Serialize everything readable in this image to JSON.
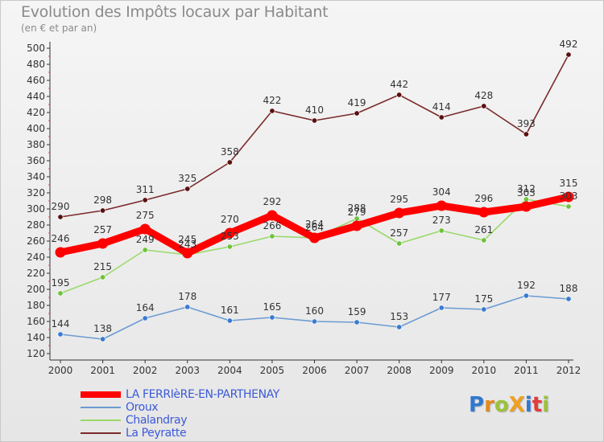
{
  "title": "Evolution des Impôts locaux par Habitant",
  "subtitle": "(en € et par an)",
  "logo": {
    "text": "ProXiti",
    "letter_colors": [
      "#2f78d0",
      "#e48a1f",
      "#9cc23a",
      "#f0a020",
      "#2f78d0",
      "#e43a3a",
      "#9cc23a"
    ]
  },
  "chart_data": {
    "type": "line",
    "title": "Evolution des Impôts locaux par Habitant",
    "subtitle": "(en € et par an)",
    "xlabel": "",
    "ylabel": "",
    "categories": [
      "2000",
      "2001",
      "2002",
      "2003",
      "2004",
      "2005",
      "2006",
      "2007",
      "2008",
      "2009",
      "2010",
      "2011",
      "2012"
    ],
    "ylim": [
      120,
      500
    ],
    "yticks": [
      120,
      140,
      160,
      180,
      200,
      220,
      240,
      260,
      280,
      300,
      320,
      340,
      360,
      380,
      400,
      420,
      440,
      460,
      480,
      500
    ],
    "grid": false,
    "legend_position": "bottom-left",
    "series": [
      {
        "name": "La Peyratte",
        "color": "#7a2a2a",
        "marker_color": "#5a1010",
        "width": "thin",
        "values": [
          290,
          298,
          311,
          325,
          358,
          422,
          410,
          419,
          442,
          414,
          428,
          393,
          492
        ],
        "labels": [
          "290",
          "298",
          "311",
          "325",
          "358",
          "422",
          "410",
          "419",
          "442",
          "414",
          "428",
          "393",
          "492"
        ]
      },
      {
        "name": "Chalandray",
        "color": "#9ad96a",
        "marker_color": "#6fc23a",
        "width": "thin",
        "values": [
          195,
          215,
          249,
          243,
          253,
          266,
          264,
          288,
          257,
          273,
          261,
          312,
          303
        ],
        "labels": [
          "195",
          "215",
          "249",
          "243",
          "253",
          "266",
          "264",
          "288",
          "257",
          "273",
          "261",
          "312",
          "303"
        ]
      },
      {
        "name": "Oroux",
        "color": "#6c9bd2",
        "marker_color": "#3a7bd0",
        "width": "thin",
        "values": [
          144,
          138,
          164,
          178,
          161,
          165,
          160,
          159,
          153,
          177,
          175,
          192,
          188
        ],
        "labels": [
          "144",
          "138",
          "164",
          "178",
          "161",
          "165",
          "160",
          "159",
          "153",
          "177",
          "175",
          "192",
          "188"
        ]
      },
      {
        "name": "LA FERRIèRE-EN-PARTHENAY",
        "color": "#ff0000",
        "marker_color": "#ff0000",
        "width": "thick",
        "values": [
          246,
          257,
          275,
          245,
          270,
          292,
          264,
          279,
          295,
          304,
          296,
          303,
          315
        ],
        "labels": [
          "246",
          "257",
          "275",
          "245",
          "270",
          "292",
          "264",
          "279",
          "295",
          "304",
          "296",
          "303",
          "315"
        ]
      }
    ],
    "legend": [
      "LA FERRIèRE-EN-PARTHENAY",
      "Oroux",
      "Chalandray",
      "La Peyratte"
    ]
  }
}
